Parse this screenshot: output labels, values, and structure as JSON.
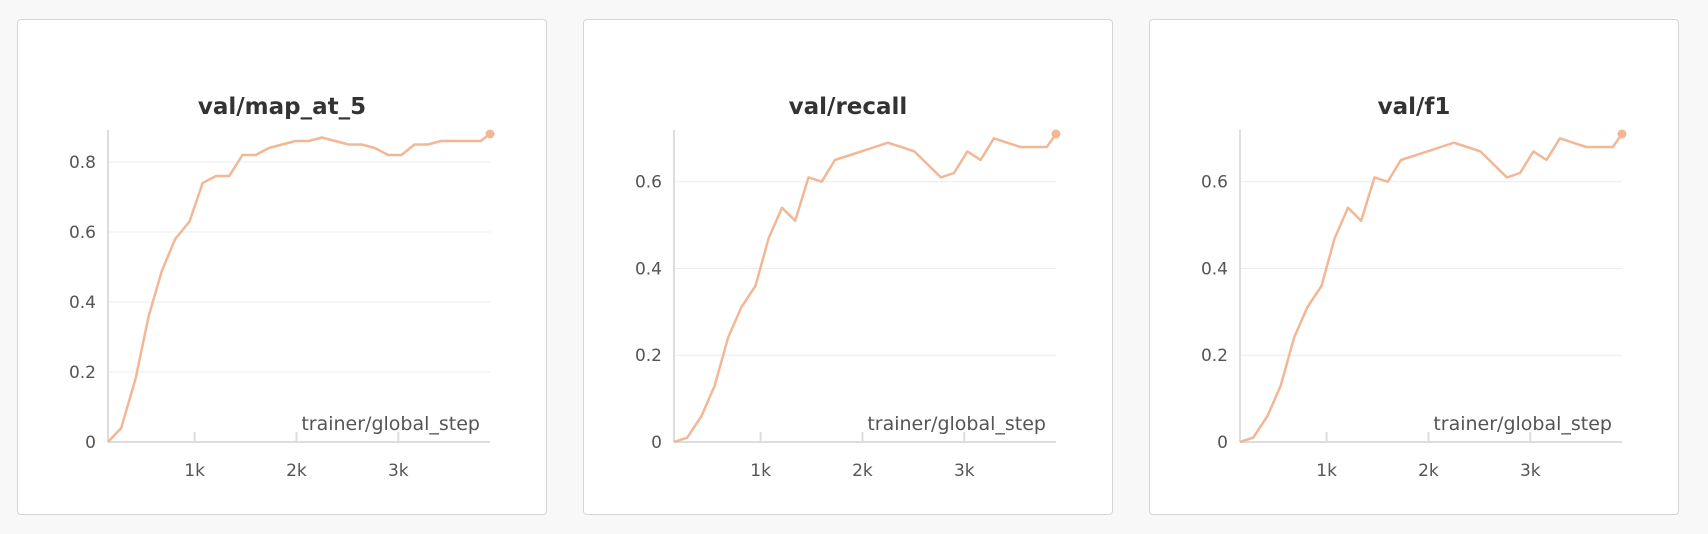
{
  "theme": {
    "line_color": "#f2b896",
    "grid_color": "#ececec",
    "axis_color": "#dddddd"
  },
  "chart_data": [
    {
      "type": "line",
      "title": "val/map_at_5",
      "xlabel": "trainer/global_step",
      "ylabel": "",
      "xlim": [
        150,
        3900
      ],
      "ylim": [
        0,
        0.88
      ],
      "x_ticks": [
        1000,
        2000,
        3000
      ],
      "x_tick_labels": [
        "1k",
        "2k",
        "3k"
      ],
      "y_ticks": [
        0,
        0.2,
        0.4,
        0.6,
        0.8
      ],
      "y_tick_labels": [
        "0",
        "0.2",
        "0.4",
        "0.6",
        "0.8"
      ],
      "grid": true,
      "series": [
        {
          "x": [
            150,
            280,
            420,
            550,
            680,
            810,
            950,
            1080,
            1210,
            1340,
            1470,
            1600,
            1730,
            1860,
            1990,
            2120,
            2250,
            2380,
            2510,
            2640,
            2770,
            2900,
            3030,
            3160,
            3290,
            3420,
            3550,
            3680,
            3810,
            3900
          ],
          "y": [
            0.0,
            0.04,
            0.18,
            0.36,
            0.49,
            0.58,
            0.63,
            0.74,
            0.76,
            0.76,
            0.82,
            0.82,
            0.84,
            0.85,
            0.86,
            0.86,
            0.87,
            0.86,
            0.85,
            0.85,
            0.84,
            0.82,
            0.82,
            0.85,
            0.85,
            0.86,
            0.86,
            0.86,
            0.86,
            0.88
          ]
        }
      ]
    },
    {
      "type": "line",
      "title": "val/recall",
      "xlabel": "trainer/global_step",
      "ylabel": "",
      "xlim": [
        150,
        3900
      ],
      "ylim": [
        0,
        0.71
      ],
      "x_ticks": [
        1000,
        2000,
        3000
      ],
      "x_tick_labels": [
        "1k",
        "2k",
        "3k"
      ],
      "y_ticks": [
        0,
        0.2,
        0.4,
        0.6
      ],
      "y_tick_labels": [
        "0",
        "0.2",
        "0.4",
        "0.6"
      ],
      "grid": true,
      "series": [
        {
          "x": [
            150,
            280,
            420,
            550,
            680,
            810,
            950,
            1080,
            1210,
            1340,
            1470,
            1600,
            1730,
            1860,
            1990,
            2120,
            2250,
            2380,
            2510,
            2640,
            2770,
            2900,
            3030,
            3160,
            3290,
            3420,
            3550,
            3680,
            3810,
            3900
          ],
          "y": [
            0.0,
            0.01,
            0.06,
            0.13,
            0.24,
            0.31,
            0.36,
            0.47,
            0.54,
            0.51,
            0.61,
            0.6,
            0.65,
            0.66,
            0.67,
            0.68,
            0.69,
            0.68,
            0.67,
            0.64,
            0.61,
            0.62,
            0.67,
            0.65,
            0.7,
            0.69,
            0.68,
            0.68,
            0.68,
            0.71
          ]
        }
      ]
    },
    {
      "type": "line",
      "title": "val/f1",
      "xlabel": "trainer/global_step",
      "ylabel": "",
      "xlim": [
        150,
        3900
      ],
      "ylim": [
        0,
        0.71
      ],
      "x_ticks": [
        1000,
        2000,
        3000
      ],
      "x_tick_labels": [
        "1k",
        "2k",
        "3k"
      ],
      "y_ticks": [
        0,
        0.2,
        0.4,
        0.6
      ],
      "y_tick_labels": [
        "0",
        "0.2",
        "0.4",
        "0.6"
      ],
      "grid": true,
      "series": [
        {
          "x": [
            150,
            280,
            420,
            550,
            680,
            810,
            950,
            1080,
            1210,
            1340,
            1470,
            1600,
            1730,
            1860,
            1990,
            2120,
            2250,
            2380,
            2510,
            2640,
            2770,
            2900,
            3030,
            3160,
            3290,
            3420,
            3550,
            3680,
            3810,
            3900
          ],
          "y": [
            0.0,
            0.01,
            0.06,
            0.13,
            0.24,
            0.31,
            0.36,
            0.47,
            0.54,
            0.51,
            0.61,
            0.6,
            0.65,
            0.66,
            0.67,
            0.68,
            0.69,
            0.68,
            0.67,
            0.64,
            0.61,
            0.62,
            0.67,
            0.65,
            0.7,
            0.69,
            0.68,
            0.68,
            0.68,
            0.71
          ]
        }
      ]
    }
  ]
}
